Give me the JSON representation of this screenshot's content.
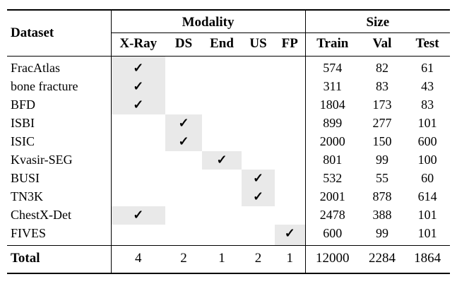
{
  "table": {
    "header": {
      "dataset": "Dataset",
      "modality_group": "Modality",
      "size_group": "Size",
      "modality_cols": [
        "X-Ray",
        "DS",
        "End",
        "US",
        "FP"
      ],
      "size_cols": [
        "Train",
        "Val",
        "Test"
      ]
    },
    "check_glyph": "✓",
    "shade_color": "#e9e9e9",
    "rows": [
      {
        "dataset": "FracAtlas",
        "modality": [
          1,
          0,
          0,
          0,
          0
        ],
        "train": 574,
        "val": 82,
        "test": 61
      },
      {
        "dataset": "bone fracture",
        "modality": [
          1,
          0,
          0,
          0,
          0
        ],
        "train": 311,
        "val": 83,
        "test": 43
      },
      {
        "dataset": "BFD",
        "modality": [
          1,
          0,
          0,
          0,
          0
        ],
        "train": 1804,
        "val": 173,
        "test": 83
      },
      {
        "dataset": "ISBI",
        "modality": [
          0,
          1,
          0,
          0,
          0
        ],
        "train": 899,
        "val": 277,
        "test": 101
      },
      {
        "dataset": "ISIC",
        "modality": [
          0,
          1,
          0,
          0,
          0
        ],
        "train": 2000,
        "val": 150,
        "test": 600
      },
      {
        "dataset": "Kvasir-SEG",
        "modality": [
          0,
          0,
          1,
          0,
          0
        ],
        "train": 801,
        "val": 99,
        "test": 100
      },
      {
        "dataset": "BUSI",
        "modality": [
          0,
          0,
          0,
          1,
          0
        ],
        "train": 532,
        "val": 55,
        "test": 60
      },
      {
        "dataset": "TN3K",
        "modality": [
          0,
          0,
          0,
          1,
          0
        ],
        "train": 2001,
        "val": 878,
        "test": 614
      },
      {
        "dataset": "ChestX-Det",
        "modality": [
          1,
          0,
          0,
          0,
          0
        ],
        "train": 2478,
        "val": 388,
        "test": 101
      },
      {
        "dataset": "FIVES",
        "modality": [
          0,
          0,
          0,
          0,
          1
        ],
        "train": 600,
        "val": 99,
        "test": 101
      }
    ],
    "total": {
      "label": "Total",
      "modality_counts": [
        4,
        2,
        1,
        2,
        1
      ],
      "train": 12000,
      "val": 2284,
      "test": 1864
    }
  }
}
